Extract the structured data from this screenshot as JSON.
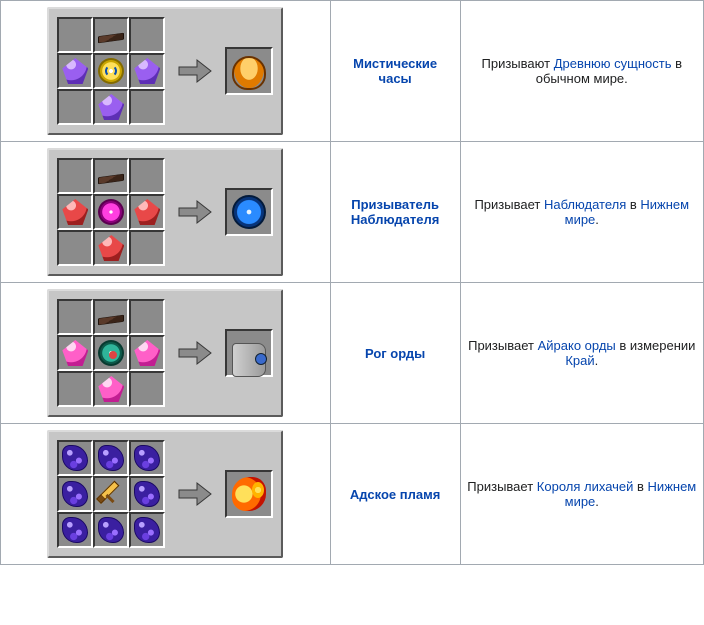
{
  "colors": {
    "panel_bg": "#c6c6c6",
    "panel_light": "#dbdbdb",
    "panel_dark": "#5b5b5b",
    "slot_bg": "#8b8b8b",
    "slot_light": "#ffffff",
    "slot_dark": "#373737",
    "arrow": "#8b8b8b",
    "arrow_border": "#373737",
    "border": "#a2a9b1",
    "link": "#0645ad",
    "text": "#202122"
  },
  "items": {
    "ingot": {
      "name": "Тёмный слиток",
      "sprite": "it-ingot"
    },
    "gem_purple": {
      "name": "Фиолетовый камень",
      "sprite": "it-gem-purple gem"
    },
    "gem_red": {
      "name": "Красный камень",
      "sprite": "it-gem-red gem"
    },
    "gem_pink": {
      "name": "Розовый камень",
      "sprite": "it-gem-pink gem"
    },
    "orb_yellow": {
      "name": "Жёлтое око",
      "sprite": "it-orb-yellow orb"
    },
    "orb_magenta": {
      "name": "Пурпурное око",
      "sprite": "it-orb-magenta orb"
    },
    "orb_teal": {
      "name": "Бирюзовое око",
      "sprite": "it-orb-teal orb"
    },
    "swirl": {
      "name": "Фиолетовая пыль",
      "sprite": "it-swirl"
    },
    "sword": {
      "name": "Золотой меч",
      "sprite": "it-sword"
    },
    "out_bowl": {
      "name": "Мистические часы",
      "sprite": "it-bowl"
    },
    "out_eye": {
      "name": "Призыватель Наблюдателя",
      "sprite": "it-eye-blue"
    },
    "out_horn": {
      "name": "Рог орды",
      "sprite": "it-horn"
    },
    "out_flame": {
      "name": "Адское пламя",
      "sprite": "it-flame"
    }
  },
  "recipes": [
    {
      "name": "Мистические часы",
      "grid": [
        null,
        "ingot",
        null,
        "gem_purple",
        "orb_yellow",
        "gem_purple",
        null,
        "gem_purple",
        null
      ],
      "output": "out_bowl",
      "desc": {
        "pre": "Призывают ",
        "link1": "Древнюю сущность",
        "mid": " в обычном мире.",
        "link2": null,
        "post": ""
      }
    },
    {
      "name": "Призыватель Наблюдателя",
      "grid": [
        null,
        "ingot",
        null,
        "gem_red",
        "orb_magenta",
        "gem_red",
        null,
        "gem_red",
        null
      ],
      "output": "out_eye",
      "desc": {
        "pre": "Призывает ",
        "link1": "Наблюдателя",
        "mid": " в ",
        "link2": "Нижнем мире",
        "post": "."
      }
    },
    {
      "name": "Рог орды",
      "grid": [
        null,
        "ingot",
        null,
        "gem_pink",
        "orb_teal",
        "gem_pink",
        null,
        "gem_pink",
        null
      ],
      "output": "out_horn",
      "desc": {
        "pre": "Призывает ",
        "link1": "Айрако орды",
        "mid": " в измерении ",
        "link2": "Край",
        "post": "."
      }
    },
    {
      "name": "Адское пламя",
      "grid": [
        "swirl",
        "swirl",
        "swirl",
        "swirl",
        "sword",
        "swirl",
        "swirl",
        "swirl",
        "swirl"
      ],
      "output": "out_flame",
      "desc": {
        "pre": "Призывает ",
        "link1": "Короля лихачей",
        "mid": " в ",
        "link2": "Нижнем мире",
        "post": "."
      }
    }
  ]
}
